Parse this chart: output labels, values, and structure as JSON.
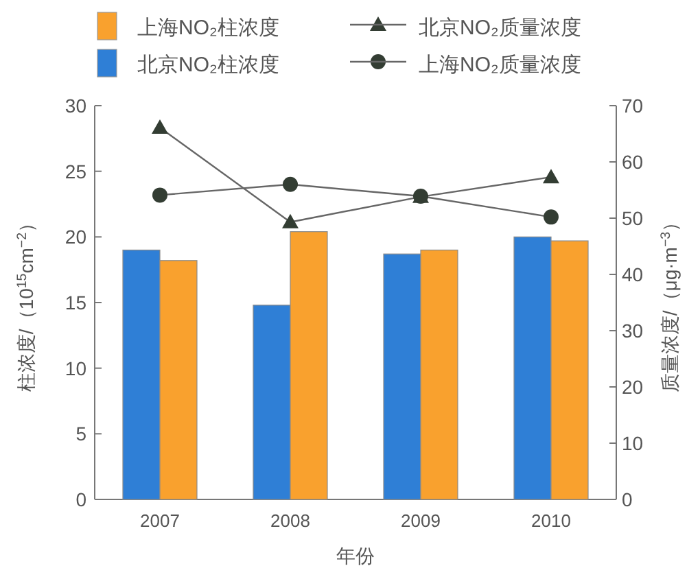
{
  "chart_data": {
    "type": "bar",
    "xlabel": "年份",
    "ylabel": "柱浓度/（10$^{15}$cm$^{−2}$）",
    "y2label": "质量浓度/（μg·m$^{−3}$）",
    "categories": [
      "2007",
      "2008",
      "2009",
      "2010"
    ],
    "series": [
      {
        "name": "北京NO₂柱浓度",
        "color": "#2f7fd6",
        "values": [
          19.0,
          14.8,
          18.7,
          20.0
        ]
      },
      {
        "name": "上海NO₂柱浓度",
        "color": "#f9a12e",
        "values": [
          18.2,
          20.4,
          19.0,
          19.7
        ]
      },
      {
        "name": "北京NO₂质量浓度",
        "type": "line",
        "axis": "y2",
        "marker": "triangle",
        "color": "#333d33",
        "values": [
          66.1,
          49.3,
          53.8,
          57.3
        ]
      },
      {
        "name": "上海NO₂质量浓度",
        "type": "line",
        "axis": "y2",
        "marker": "circle",
        "color": "#333d33",
        "values": [
          54.1,
          56.0,
          53.9,
          50.2
        ]
      }
    ],
    "ylim": [
      0,
      30
    ],
    "yticks": [
      0,
      5,
      10,
      15,
      20,
      25,
      30
    ],
    "y2lim": [
      0,
      70
    ],
    "y2ticks": [
      0,
      10,
      20,
      30,
      40,
      50,
      60,
      70
    ],
    "legend": "top",
    "grid": false
  }
}
